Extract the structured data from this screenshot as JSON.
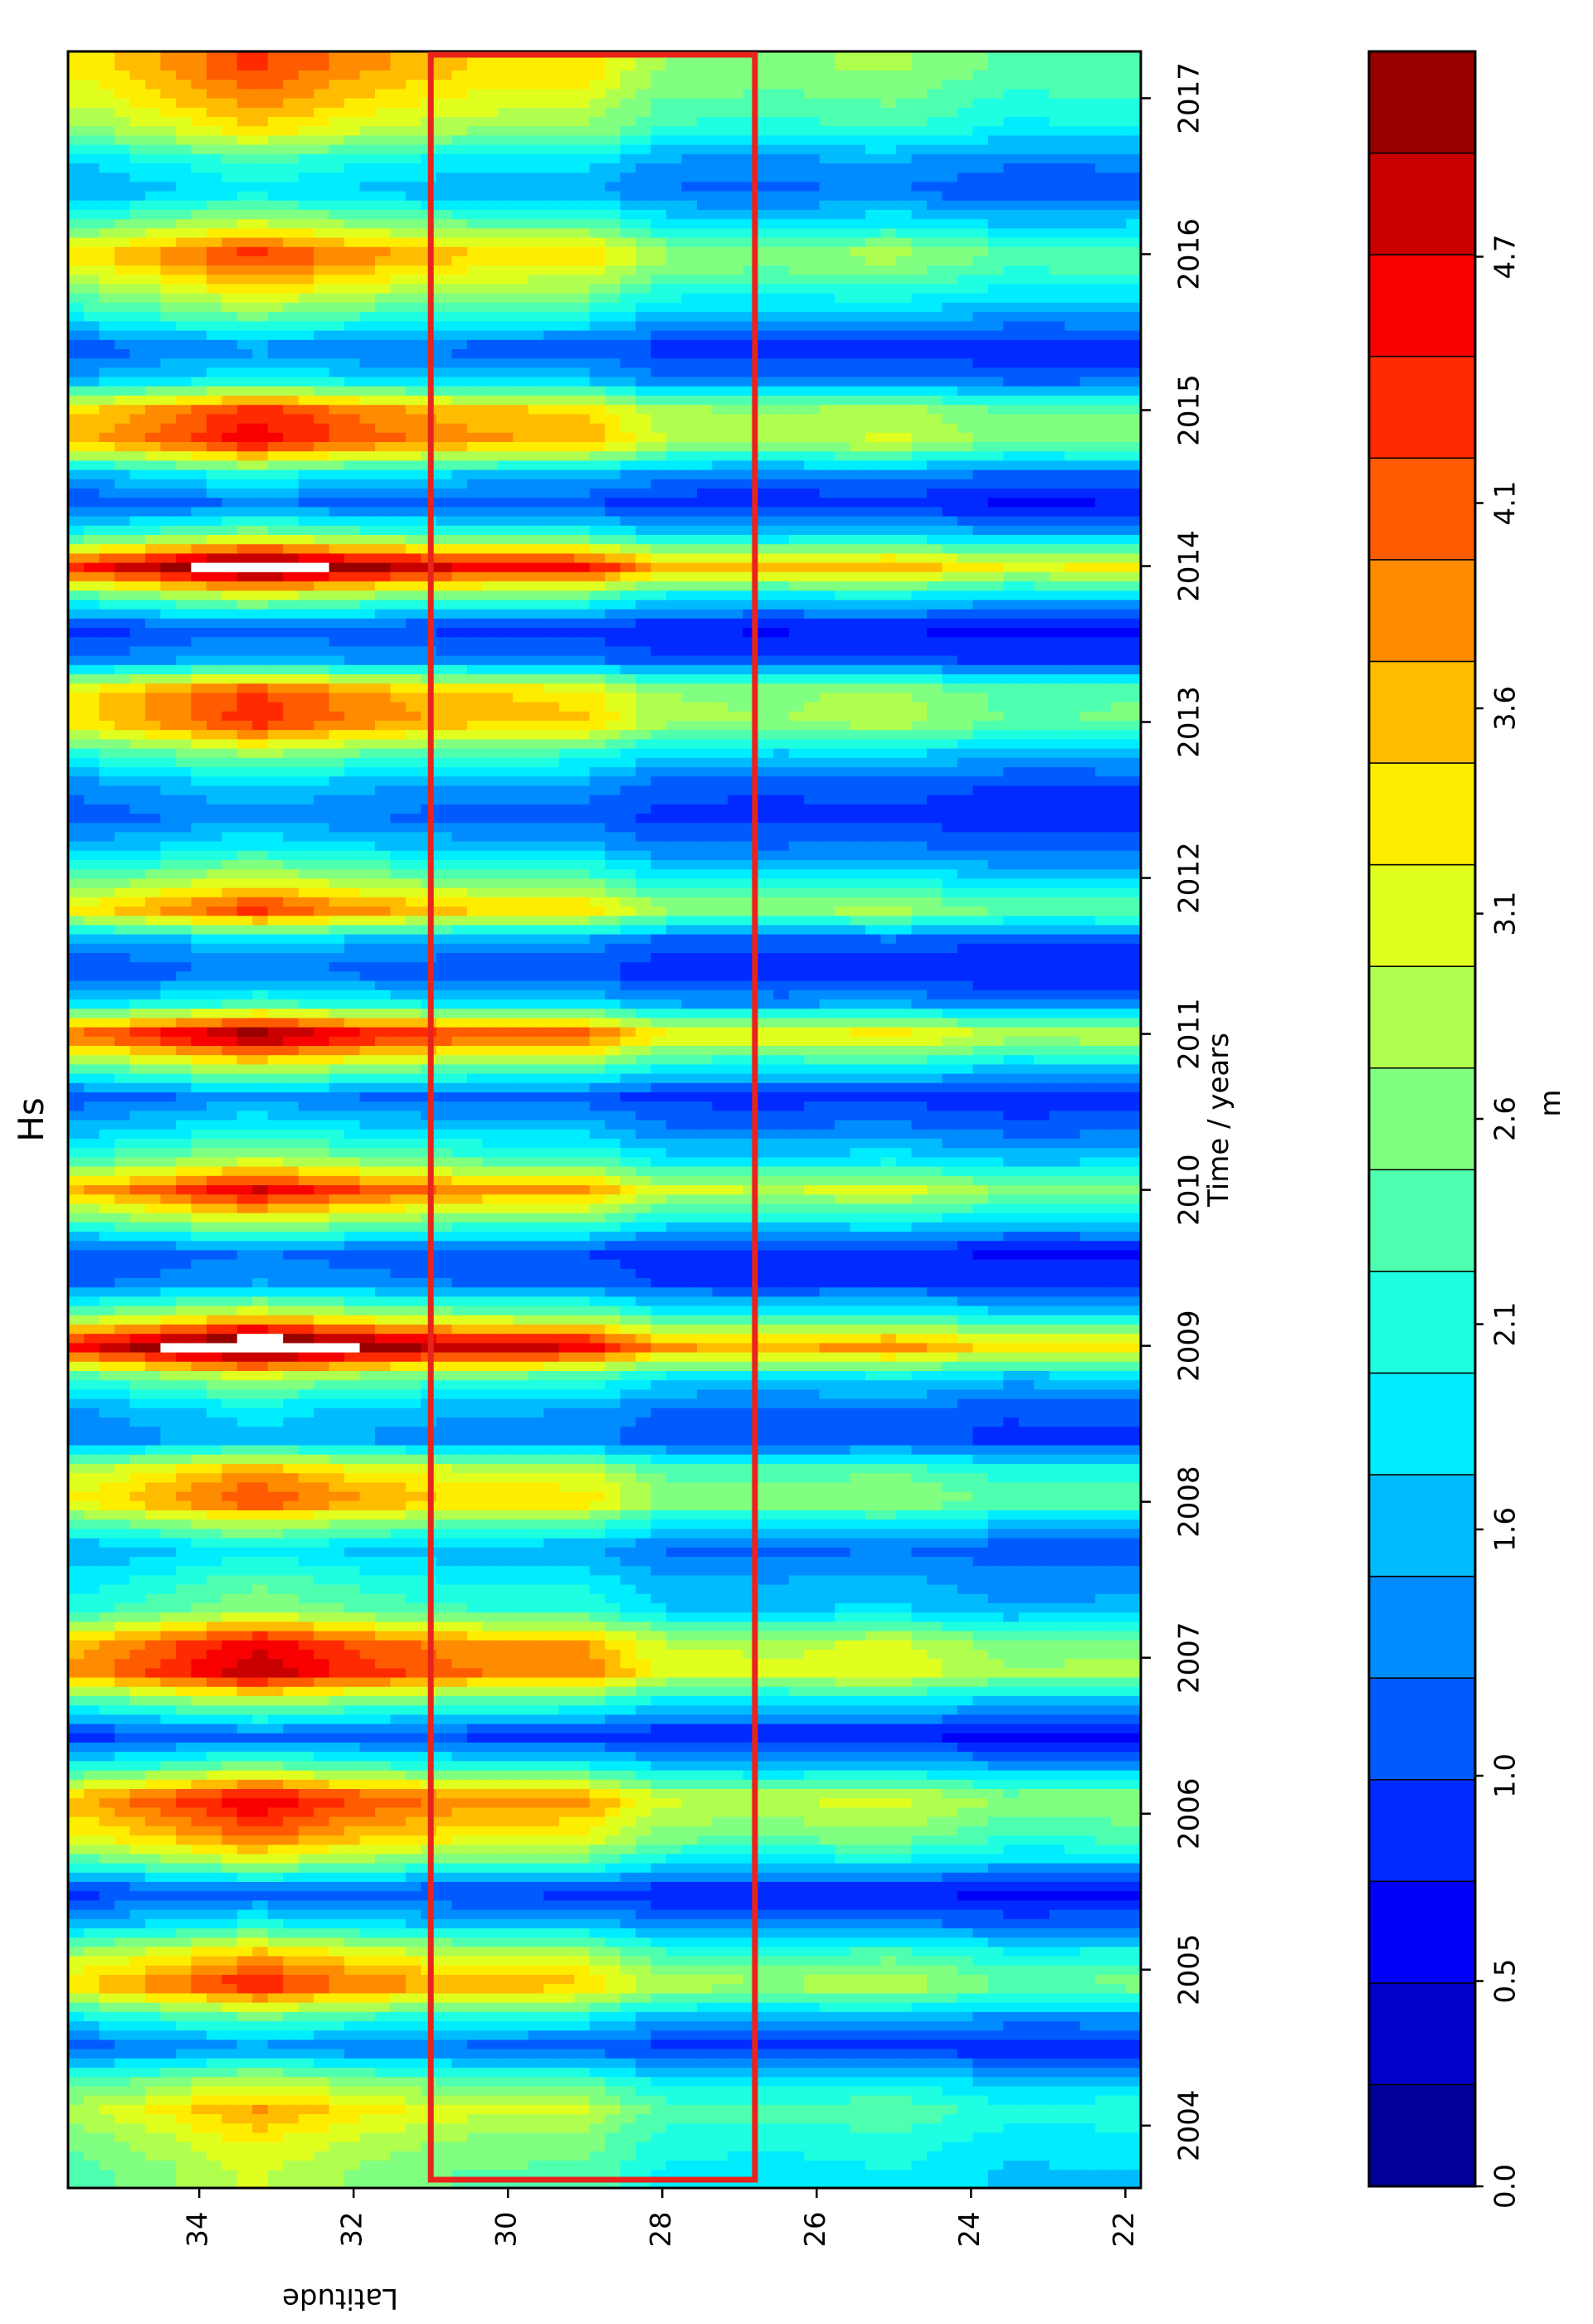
{
  "chart_data": {
    "type": "heatmap",
    "title": "Hs",
    "xlabel": "Time / years",
    "ylabel": "Latitude",
    "colorbar_label": "m",
    "x_ticks": [
      "2004",
      "2005",
      "2006",
      "2007",
      "2008",
      "2009",
      "2010",
      "2011",
      "2012",
      "2013",
      "2014",
      "2015",
      "2016",
      "2017"
    ],
    "xlim": [
      2003.6,
      2017.3
    ],
    "y_ticks": [
      "22",
      "24",
      "26",
      "28",
      "30",
      "32",
      "34"
    ],
    "ylim": [
      21.8,
      35.7
    ],
    "colorbar_ticks": [
      "0.0",
      "0.5",
      "1.0",
      "1.6",
      "2.1",
      "2.6",
      "3.1",
      "3.6",
      "4.1",
      "4.7"
    ],
    "colorbar_range": [
      0.0,
      5.2
    ],
    "colorbar_levels": 21,
    "colormap": "jet",
    "highlight_box": {
      "lat_min": 26.8,
      "lat_max": 31.0,
      "color": "#e8241c"
    },
    "latitude_profile": [
      {
        "lat": 22,
        "factor": 0.72
      },
      {
        "lat": 23.5,
        "factor": 0.7
      },
      {
        "lat": 25,
        "factor": 0.82
      },
      {
        "lat": 26.5,
        "factor": 0.78
      },
      {
        "lat": 28,
        "factor": 0.8
      },
      {
        "lat": 29,
        "factor": 1.0
      },
      {
        "lat": 30.5,
        "factor": 1.02
      },
      {
        "lat": 32,
        "factor": 1.12
      },
      {
        "lat": 33.3,
        "factor": 1.26
      },
      {
        "lat": 34.5,
        "factor": 1.1
      },
      {
        "lat": 35.5,
        "factor": 0.98
      }
    ],
    "time_series": [
      {
        "t": 2003.7,
        "hs": 2.4
      },
      {
        "t": 2003.9,
        "hs": 2.6
      },
      {
        "t": 2004.1,
        "hs": 3.0
      },
      {
        "t": 2004.3,
        "hs": 2.3
      },
      {
        "t": 2004.5,
        "hs": 1.1
      },
      {
        "t": 2004.7,
        "hs": 2.0
      },
      {
        "t": 2004.9,
        "hs": 3.6
      },
      {
        "t": 2005.1,
        "hs": 2.9
      },
      {
        "t": 2005.3,
        "hs": 1.6
      },
      {
        "t": 2005.5,
        "hs": 0.9
      },
      {
        "t": 2005.7,
        "hs": 2.4
      },
      {
        "t": 2005.85,
        "hs": 3.2
      },
      {
        "t": 2006.1,
        "hs": 3.8
      },
      {
        "t": 2006.3,
        "hs": 2.1
      },
      {
        "t": 2006.5,
        "hs": 0.9
      },
      {
        "t": 2006.75,
        "hs": 2.5
      },
      {
        "t": 2006.9,
        "hs": 3.9
      },
      {
        "t": 2007.1,
        "hs": 3.7
      },
      {
        "t": 2007.3,
        "hs": 2.2
      },
      {
        "t": 2007.5,
        "hs": 1.9
      },
      {
        "t": 2007.7,
        "hs": 1.5
      },
      {
        "t": 2007.9,
        "hs": 2.6
      },
      {
        "t": 2008.0,
        "hs": 3.4
      },
      {
        "t": 2008.2,
        "hs": 3.0
      },
      {
        "t": 2008.4,
        "hs": 1.3
      },
      {
        "t": 2008.6,
        "hs": 1.5
      },
      {
        "t": 2008.8,
        "hs": 2.3
      },
      {
        "t": 2009.0,
        "hs": 4.8
      },
      {
        "t": 2009.2,
        "hs": 2.6
      },
      {
        "t": 2009.4,
        "hs": 1.2
      },
      {
        "t": 2009.6,
        "hs": 1.0
      },
      {
        "t": 2009.8,
        "hs": 2.4
      },
      {
        "t": 2010.0,
        "hs": 3.8
      },
      {
        "t": 2010.2,
        "hs": 2.3
      },
      {
        "t": 2010.4,
        "hs": 1.6
      },
      {
        "t": 2010.6,
        "hs": 1.1
      },
      {
        "t": 2010.8,
        "hs": 2.5
      },
      {
        "t": 2011.0,
        "hs": 4.2
      },
      {
        "t": 2011.2,
        "hs": 1.8
      },
      {
        "t": 2011.4,
        "hs": 1.0
      },
      {
        "t": 2011.6,
        "hs": 1.4
      },
      {
        "t": 2011.8,
        "hs": 3.5
      },
      {
        "t": 2012.0,
        "hs": 2.4
      },
      {
        "t": 2012.2,
        "hs": 1.6
      },
      {
        "t": 2012.4,
        "hs": 1.1
      },
      {
        "t": 2012.6,
        "hs": 1.4
      },
      {
        "t": 2012.8,
        "hs": 2.2
      },
      {
        "t": 2013.0,
        "hs": 3.5
      },
      {
        "t": 2013.2,
        "hs": 3.4
      },
      {
        "t": 2013.4,
        "hs": 1.3
      },
      {
        "t": 2013.6,
        "hs": 0.9
      },
      {
        "t": 2013.8,
        "hs": 2.3
      },
      {
        "t": 2014.0,
        "hs": 4.6
      },
      {
        "t": 2014.2,
        "hs": 2.2
      },
      {
        "t": 2014.4,
        "hs": 1.0
      },
      {
        "t": 2014.6,
        "hs": 1.7
      },
      {
        "t": 2014.8,
        "hs": 3.7
      },
      {
        "t": 2015.0,
        "hs": 3.5
      },
      {
        "t": 2015.2,
        "hs": 1.6
      },
      {
        "t": 2015.4,
        "hs": 1.1
      },
      {
        "t": 2015.6,
        "hs": 2.0
      },
      {
        "t": 2015.8,
        "hs": 2.8
      },
      {
        "t": 2016.0,
        "hs": 3.5
      },
      {
        "t": 2016.2,
        "hs": 2.4
      },
      {
        "t": 2016.4,
        "hs": 1.5
      },
      {
        "t": 2016.6,
        "hs": 1.8
      },
      {
        "t": 2016.8,
        "hs": 2.7
      },
      {
        "t": 2017.0,
        "hs": 3.1
      },
      {
        "t": 2017.2,
        "hs": 3.4
      }
    ]
  }
}
